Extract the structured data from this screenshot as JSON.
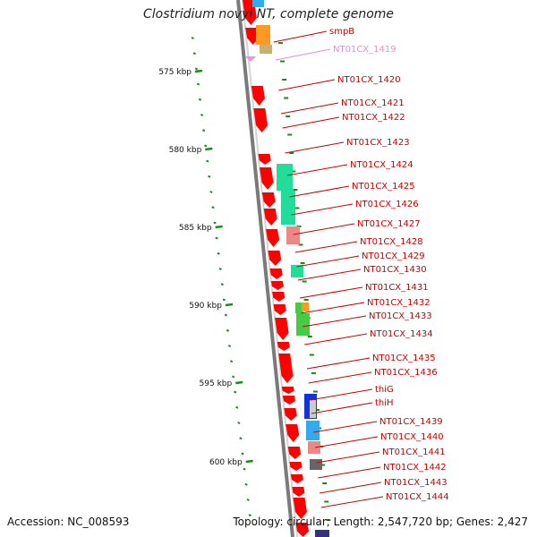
{
  "title": "Clostridium novyi NT, complete genome",
  "footer": {
    "accession": "Accession: NC_008593",
    "summary": "Topology: circular; Length: 2,547,720 bp; Genes: 2,427"
  },
  "colors": {
    "cds": "#ff0000",
    "backbone": "#7a7a7a",
    "tick": "#1a8c1a",
    "label_line": "#cc0000",
    "label_text": "#cc0000",
    "label_text_faded": "#e88bd8",
    "cog_green": "#22dd99",
    "cog_pink": "#ee8888",
    "cog_orange": "#ff9922",
    "cog_lime": "#44cc44",
    "cog_blue": "#1133dd",
    "cog_lightblue": "#33aaee",
    "cog_grey": "#666666",
    "cog_tan": "#c8b070"
  },
  "scale_labels": [
    {
      "kbp": 575,
      "text": "575 kbp"
    },
    {
      "kbp": 580,
      "text": "580 kbp"
    },
    {
      "kbp": 585,
      "text": "585 kbp"
    },
    {
      "kbp": 590,
      "text": "590 kbp"
    },
    {
      "kbp": 595,
      "text": "595 kbp"
    },
    {
      "kbp": 600,
      "text": "600 kbp"
    }
  ],
  "gene_labels": [
    {
      "name": "smpB",
      "faded": false
    },
    {
      "name": "NT01CX_1419",
      "faded": true
    },
    {
      "name": "NT01CX_1420",
      "faded": false
    },
    {
      "name": "NT01CX_1421",
      "faded": false
    },
    {
      "name": "NT01CX_1422",
      "faded": false
    },
    {
      "name": "NT01CX_1423",
      "faded": false
    },
    {
      "name": "NT01CX_1424",
      "faded": false
    },
    {
      "name": "NT01CX_1425",
      "faded": false
    },
    {
      "name": "NT01CX_1426",
      "faded": false
    },
    {
      "name": "NT01CX_1427",
      "faded": false
    },
    {
      "name": "NT01CX_1428",
      "faded": false
    },
    {
      "name": "NT01CX_1429",
      "faded": false
    },
    {
      "name": "NT01CX_1430",
      "faded": false
    },
    {
      "name": "NT01CX_1431",
      "faded": false
    },
    {
      "name": "NT01CX_1432",
      "faded": false
    },
    {
      "name": "NT01CX_1433",
      "faded": false
    },
    {
      "name": "NT01CX_1434",
      "faded": false
    },
    {
      "name": "NT01CX_1435",
      "faded": false
    },
    {
      "name": "NT01CX_1436",
      "faded": false
    },
    {
      "name": "thiG",
      "faded": false
    },
    {
      "name": "thiH",
      "faded": false
    },
    {
      "name": "NT01CX_1439",
      "faded": false
    },
    {
      "name": "NT01CX_1440",
      "faded": false
    },
    {
      "name": "NT01CX_1441",
      "faded": false
    },
    {
      "name": "NT01CX_1442",
      "faded": false
    },
    {
      "name": "NT01CX_1443",
      "faded": false
    },
    {
      "name": "NT01CX_1444",
      "faded": false
    }
  ]
}
